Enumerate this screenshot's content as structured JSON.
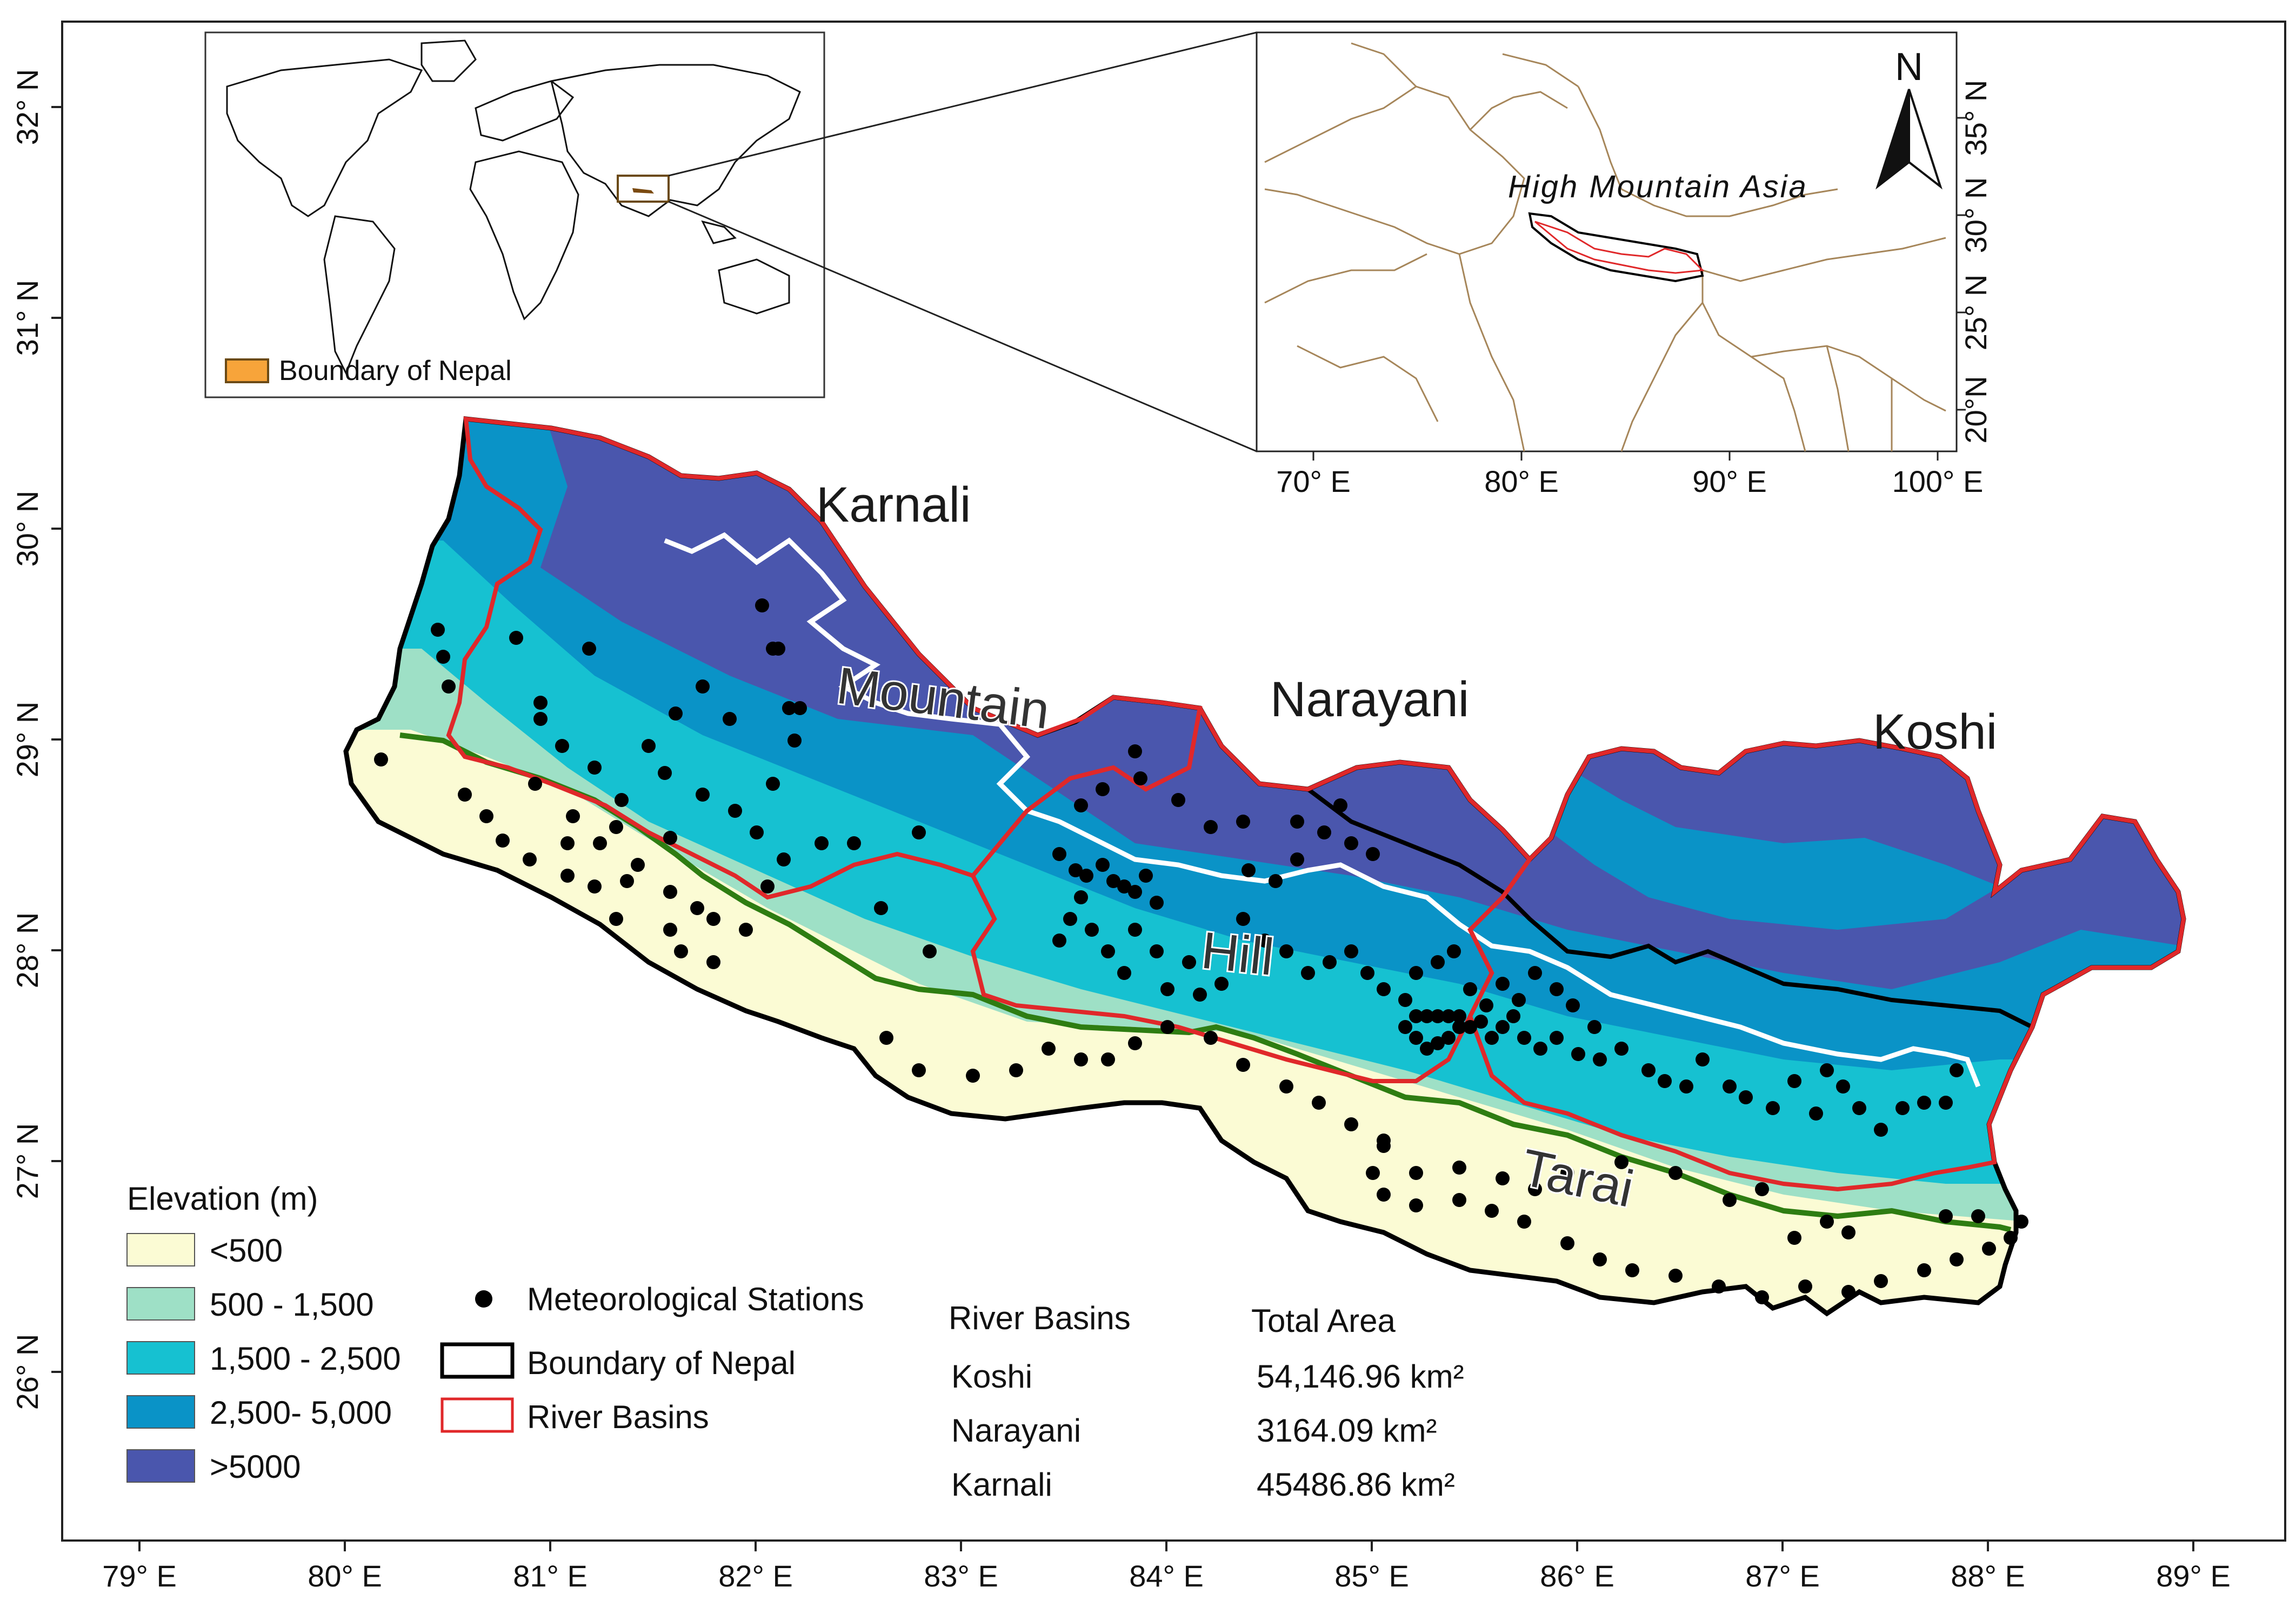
{
  "axes": {
    "longitude_ticks": [
      "79° E",
      "80° E",
      "81° E",
      "82° E",
      "83° E",
      "84° E",
      "85° E",
      "86° E",
      "87° E",
      "88° E",
      "89° E"
    ],
    "latitude_ticks": [
      "32° N",
      "31° N",
      "30° N",
      "29° N",
      "28° N",
      "27° N",
      "26° N"
    ]
  },
  "basin_labels": {
    "karnali": "Karnali",
    "narayani": "Narayani",
    "koshi": "Koshi"
  },
  "zone_labels": {
    "mountain": "Mountain",
    "hill": "Hill",
    "tarai": "Tarai"
  },
  "elevation_legend": {
    "title": "Elevation (m)",
    "classes": [
      {
        "label": "<500",
        "color": "#fbfbd4"
      },
      {
        "label": "500 - 1,500",
        "color": "#9ee0c6"
      },
      {
        "label": "1,500 - 2,500",
        "color": "#16c1d1"
      },
      {
        "label": "2,500- 5,000",
        "color": "#0a93c7"
      },
      {
        "label": ">5000",
        "color": "#4a56ad"
      }
    ]
  },
  "symbol_legend": {
    "stations": "Meteorological Stations",
    "boundary": "Boundary of Nepal",
    "basins": "River Basins"
  },
  "area_table": {
    "col1": "River Basins",
    "col2": "Total Area",
    "rows": [
      {
        "basin": "Koshi",
        "area": "54,146.96 km²"
      },
      {
        "basin": "Narayani",
        "area": "3164.09 km²"
      },
      {
        "basin": "Karnali",
        "area": "45486.86 km²"
      }
    ]
  },
  "world_inset": {
    "legend": "Boundary of Nepal"
  },
  "asia_inset": {
    "title": "High Mountain Asia",
    "north": "N",
    "lon_ticks": [
      "70° E",
      "80° E",
      "90° E",
      "100° E"
    ],
    "lat_ticks": [
      "35° N",
      "30° N",
      "25° N",
      "20°N"
    ]
  },
  "colors": {
    "basin_outline": "#e0282a",
    "nepal_outline": "#000000",
    "tarai_hill_line": "#2e7d12",
    "zone_boundary": "#ffffff",
    "station": "#000000"
  }
}
